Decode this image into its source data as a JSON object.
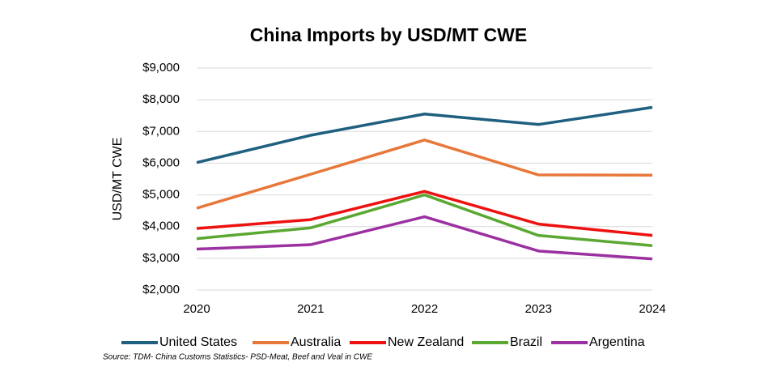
{
  "chart_data": {
    "type": "line",
    "title": "China Imports by USD/MT CWE",
    "y_label": "USD/MT CWE",
    "source": "Source: TDM- China Customs Statistics- PSD-Meat, Beef and Veal in CWE",
    "x": [
      2020,
      2021,
      2022,
      2023,
      2024
    ],
    "xlim": [
      2020,
      2024
    ],
    "xticks": [
      2020,
      2021,
      2022,
      2023,
      2024
    ],
    "ylim": [
      2000,
      9000
    ],
    "yticks": [
      {
        "value": 2000,
        "label": "$2,000"
      },
      {
        "value": 3000,
        "label": "$3,000"
      },
      {
        "value": 4000,
        "label": "$4,000"
      },
      {
        "value": 5000,
        "label": "$5,000"
      },
      {
        "value": 6000,
        "label": "$6,000"
      },
      {
        "value": 7000,
        "label": "$7,000"
      },
      {
        "value": 8000,
        "label": "$8,000"
      },
      {
        "value": 9000,
        "label": "$9,000"
      }
    ],
    "grid": true,
    "legend": "bottom",
    "series": [
      {
        "name": "United States",
        "color": "#1f5f7f",
        "values": [
          6020,
          6880,
          7550,
          7220,
          7760
        ]
      },
      {
        "name": "Australia",
        "color": "#e8773a",
        "values": [
          4580,
          5650,
          6730,
          5630,
          5620
        ]
      },
      {
        "name": "New Zealand",
        "color": "#ee1111",
        "values": [
          3940,
          4220,
          5110,
          4080,
          3720
        ]
      },
      {
        "name": "Brazil",
        "color": "#5aa832",
        "values": [
          3620,
          3960,
          5000,
          3720,
          3400
        ]
      },
      {
        "name": "Argentina",
        "color": "#9b30a0",
        "values": [
          3290,
          3430,
          4310,
          3230,
          2980
        ]
      }
    ]
  }
}
